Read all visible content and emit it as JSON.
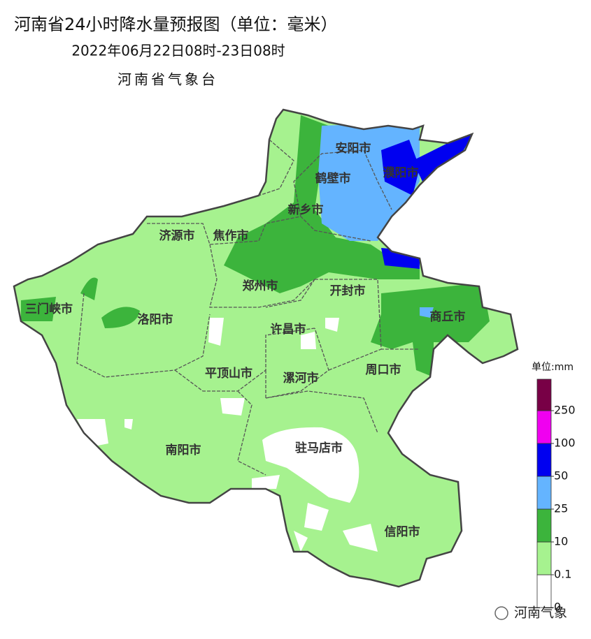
{
  "header": {
    "title": "河南省24小时降水量预报图（单位：毫米）",
    "subtitle": "2022年06月22日08时-23日08时",
    "issuer": "河南省气象台"
  },
  "cities": [
    "安阳市",
    "鹤壁市",
    "濮阳市",
    "新乡市",
    "济源市",
    "焦作市",
    "三门峡市",
    "郑州市",
    "开封市",
    "商丘市",
    "洛阳市",
    "许昌市",
    "平顶山市",
    "漯河市",
    "周口市",
    "驻马店市",
    "南阳市",
    "信阳市"
  ],
  "legend": {
    "unit": "单位:mm",
    "ticks": [
      0,
      0.1,
      10,
      25,
      50,
      100,
      250
    ],
    "colors": [
      "#ffffff",
      "#a6f28f",
      "#3cb43c",
      "#64b4ff",
      "#0000f0",
      "#f000f0",
      "#780046"
    ]
  },
  "watermark": "河南气象"
}
